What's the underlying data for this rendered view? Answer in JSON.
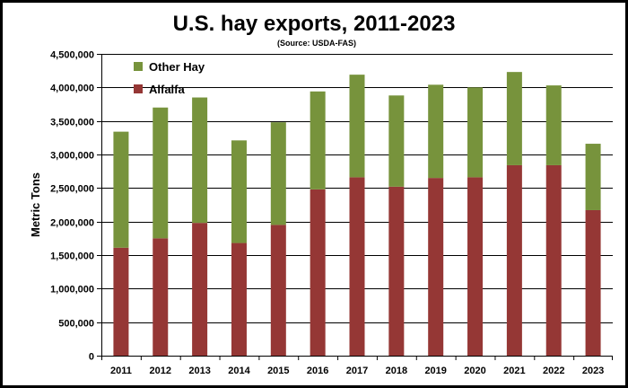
{
  "chart_data": {
    "type": "bar",
    "stacked": true,
    "title": "U.S. hay exports, 2011-2023",
    "subtitle": "(Source: USDA-FAS)",
    "ylabel": "Metric Tons",
    "xlabel": "",
    "ylim": [
      0,
      4500000
    ],
    "ytick_values": [
      0,
      500000,
      1000000,
      1500000,
      2000000,
      2500000,
      3000000,
      3500000,
      4000000,
      4500000
    ],
    "ytick_labels": [
      "0",
      "500,000",
      "1,000,000",
      "1,500,000",
      "2,000,000",
      "2,500,000",
      "3,000,000",
      "3,500,000",
      "4,000,000",
      "4,500,000"
    ],
    "grid": true,
    "legend_position": "top-left",
    "categories": [
      "2011",
      "2012",
      "2013",
      "2014",
      "2015",
      "2016",
      "2017",
      "2018",
      "2019",
      "2020",
      "2021",
      "2022",
      "2023"
    ],
    "series": [
      {
        "name": "Alfalfa",
        "color": "#953735",
        "values": [
          1610000,
          1750000,
          1980000,
          1680000,
          1950000,
          2480000,
          2660000,
          2520000,
          2650000,
          2660000,
          2840000,
          2840000,
          2170000
        ]
      },
      {
        "name": "Other Hay",
        "color": "#77933C",
        "values": [
          1730000,
          1950000,
          1870000,
          1530000,
          1530000,
          1460000,
          1530000,
          1360000,
          1390000,
          1340000,
          1390000,
          1190000,
          990000
        ]
      }
    ],
    "legend_order": [
      "Other Hay",
      "Alfalfa"
    ],
    "colors": {
      "grid": "#000000",
      "axis": "#000000"
    }
  }
}
